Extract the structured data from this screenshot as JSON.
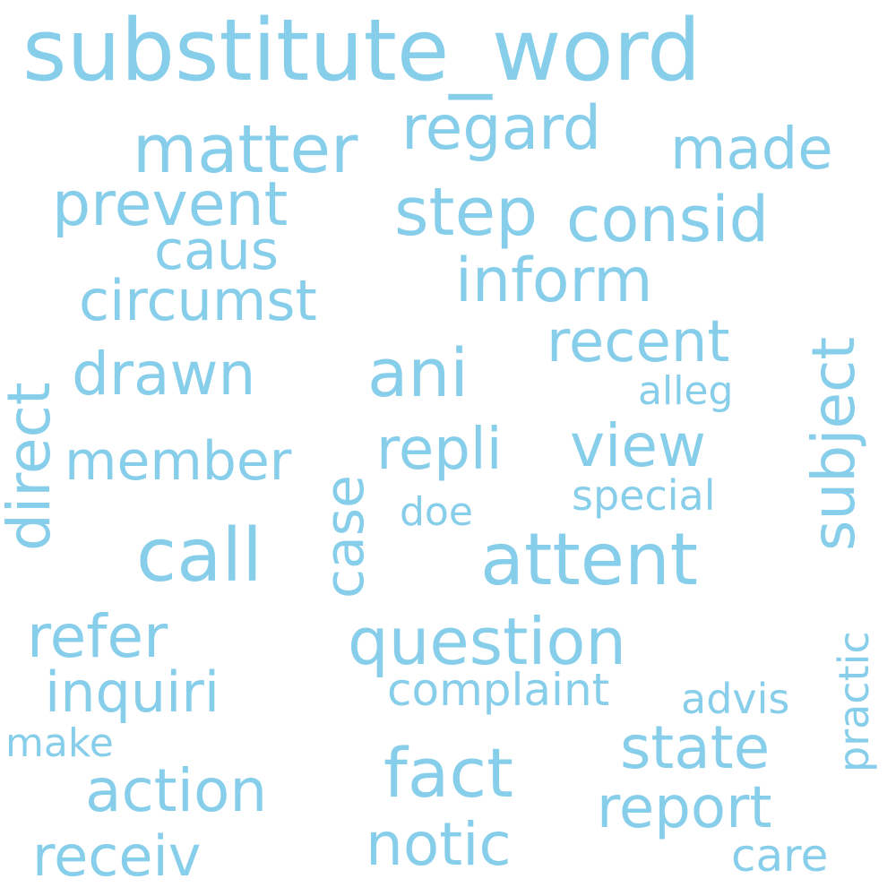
{
  "color": "#87ceeb",
  "words": [
    {
      "text": "substitute_word",
      "size": 95,
      "orientation": "horizontal"
    },
    {
      "text": "matter",
      "size": 74,
      "orientation": "horizontal"
    },
    {
      "text": "regard",
      "size": 68,
      "orientation": "horizontal"
    },
    {
      "text": "made",
      "size": 64,
      "orientation": "horizontal"
    },
    {
      "text": "prevent",
      "size": 68,
      "orientation": "horizontal"
    },
    {
      "text": "step",
      "size": 74,
      "orientation": "horizontal"
    },
    {
      "text": "consid",
      "size": 70,
      "orientation": "horizontal"
    },
    {
      "text": "caus",
      "size": 60,
      "orientation": "horizontal"
    },
    {
      "text": "inform",
      "size": 68,
      "orientation": "horizontal"
    },
    {
      "text": "circumst",
      "size": 62,
      "orientation": "horizontal"
    },
    {
      "text": "subject",
      "size": 66,
      "orientation": "vertical"
    },
    {
      "text": "direct",
      "size": 66,
      "orientation": "vertical"
    },
    {
      "text": "recent",
      "size": 64,
      "orientation": "horizontal"
    },
    {
      "text": "drawn",
      "size": 66,
      "orientation": "horizontal"
    },
    {
      "text": "ani",
      "size": 74,
      "orientation": "horizontal"
    },
    {
      "text": "alleg",
      "size": 44,
      "orientation": "horizontal"
    },
    {
      "text": "case",
      "size": 60,
      "orientation": "vertical"
    },
    {
      "text": "repli",
      "size": 64,
      "orientation": "horizontal"
    },
    {
      "text": "view",
      "size": 66,
      "orientation": "horizontal"
    },
    {
      "text": "member",
      "size": 60,
      "orientation": "horizontal"
    },
    {
      "text": "special",
      "size": 46,
      "orientation": "horizontal"
    },
    {
      "text": "doe",
      "size": 44,
      "orientation": "horizontal"
    },
    {
      "text": "call",
      "size": 82,
      "orientation": "horizontal"
    },
    {
      "text": "attent",
      "size": 80,
      "orientation": "horizontal"
    },
    {
      "text": "practic",
      "size": 46,
      "orientation": "vertical"
    },
    {
      "text": "refer",
      "size": 66,
      "orientation": "horizontal"
    },
    {
      "text": "question",
      "size": 72,
      "orientation": "horizontal"
    },
    {
      "text": "inquiri",
      "size": 62,
      "orientation": "horizontal"
    },
    {
      "text": "complaint",
      "size": 50,
      "orientation": "horizontal"
    },
    {
      "text": "advis",
      "size": 46,
      "orientation": "horizontal"
    },
    {
      "text": "make",
      "size": 44,
      "orientation": "horizontal"
    },
    {
      "text": "state",
      "size": 66,
      "orientation": "horizontal"
    },
    {
      "text": "fact",
      "size": 76,
      "orientation": "horizontal"
    },
    {
      "text": "action",
      "size": 66,
      "orientation": "horizontal"
    },
    {
      "text": "report",
      "size": 64,
      "orientation": "horizontal"
    },
    {
      "text": "notic",
      "size": 66,
      "orientation": "horizontal"
    },
    {
      "text": "receiv",
      "size": 62,
      "orientation": "horizontal"
    },
    {
      "text": "care",
      "size": 50,
      "orientation": "horizontal"
    }
  ]
}
